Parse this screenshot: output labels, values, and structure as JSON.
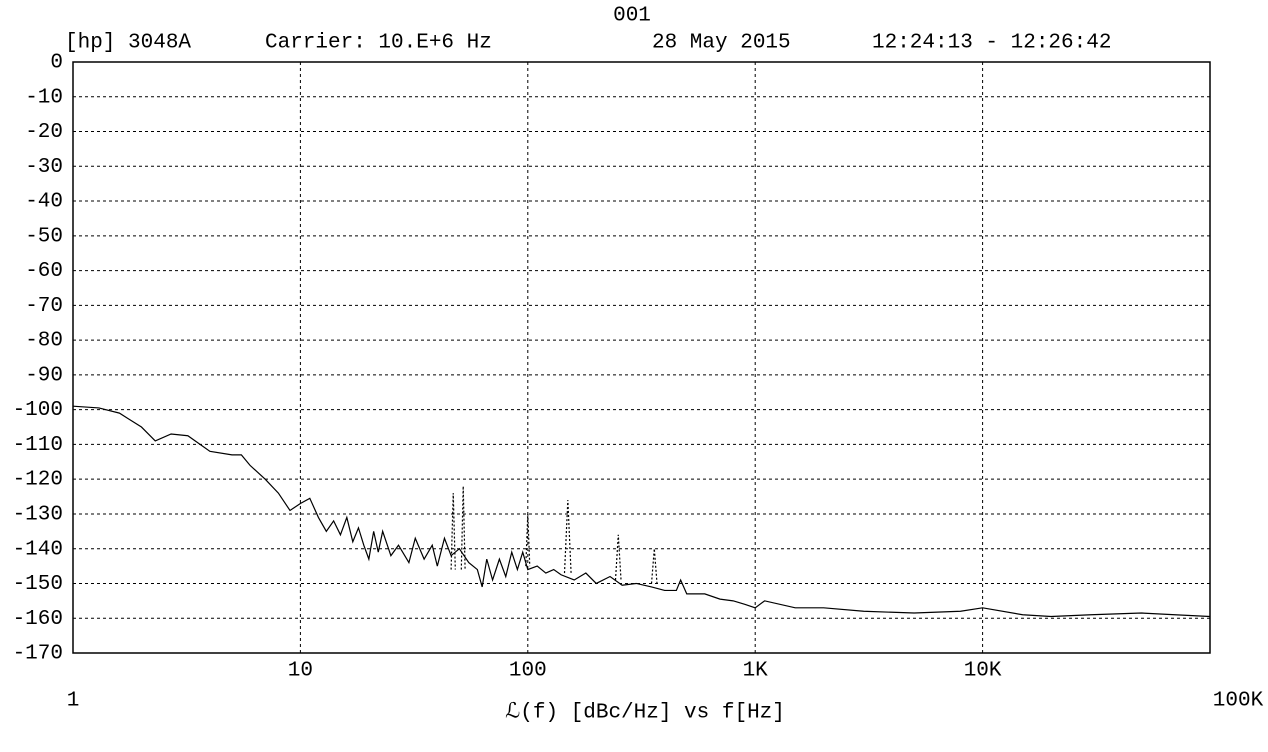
{
  "chart_data": {
    "type": "line",
    "title": "001",
    "instrument": "[hp] 3048A",
    "carrier": "Carrier: 10.E+6 Hz",
    "date": "28 May 2015",
    "time": "12:24:13 - 12:26:42",
    "x_label": "ℒ(f)  [dBc/Hz]  vs  f[Hz]",
    "log_x": true,
    "grid": true,
    "xlim": [
      1,
      100000
    ],
    "xticks": [
      1,
      10,
      100,
      {
        "value": 1000,
        "label": "1K"
      },
      {
        "value": 10000,
        "label": "10K"
      },
      {
        "value": 100000,
        "label": "100K"
      }
    ],
    "ylim": [
      -170,
      0
    ],
    "yticks": [
      0,
      -10,
      -20,
      -30,
      -40,
      -50,
      -60,
      -70,
      -80,
      -90,
      -100,
      -110,
      -120,
      -130,
      -140,
      -150,
      -160,
      -170
    ],
    "series": [
      {
        "color": "#000000",
        "style": "solid",
        "x": [
          1,
          1.3,
          1.6,
          2,
          2.3,
          2.7,
          3.2,
          4,
          5,
          5.5,
          6,
          7,
          8,
          9,
          10,
          11,
          12,
          13,
          14,
          15,
          16,
          17,
          18,
          19,
          20,
          21,
          22,
          23,
          25,
          27,
          30,
          32,
          35,
          38,
          40,
          43,
          46,
          50,
          55,
          60,
          63,
          66,
          70,
          75,
          80,
          85,
          90,
          95,
          100,
          110,
          120,
          130,
          140,
          160,
          180,
          200,
          230,
          260,
          300,
          350,
          400,
          450,
          470,
          500,
          600,
          700,
          800,
          900,
          1000,
          1100,
          1500,
          2000,
          3000,
          5000,
          8000,
          10000,
          15000,
          20000,
          30000,
          50000,
          70000,
          100000
        ],
        "values": [
          -99,
          -99.5,
          -101,
          -105,
          -109,
          -107,
          -107.5,
          -112,
          -113,
          -113,
          -116,
          -120,
          -124,
          -129,
          -127,
          -125.5,
          -131,
          -135,
          -132,
          -136,
          -131,
          -138,
          -134,
          -139,
          -143,
          -135,
          -141,
          -135,
          -142,
          -139,
          -144,
          -137,
          -143,
          -139,
          -145,
          -137,
          -142,
          -140,
          -144,
          -146,
          -151,
          -143,
          -149,
          -143,
          -148,
          -141,
          -146,
          -141,
          -146,
          -145,
          -147,
          -146,
          -147.5,
          -149,
          -147,
          -150,
          -148,
          -150.5,
          -150,
          -151,
          -152,
          -152,
          -149,
          -153,
          -153,
          -154.5,
          -155,
          -156,
          -157,
          -155,
          -157,
          -157,
          -158,
          -158.5,
          -158,
          -157,
          -159,
          -159.5,
          -159,
          -158.5,
          -159,
          -159.5
        ]
      },
      {
        "color": "#000000",
        "style": "dashed",
        "x": [
          46,
          47,
          48,
          48,
          51,
          52,
          53,
          53,
          98,
          100,
          102,
          102,
          145,
          150,
          155,
          155,
          243,
          250,
          257,
          257,
          350,
          360,
          370
        ],
        "values": [
          -146,
          -124,
          -146,
          null,
          -146,
          -122,
          -146,
          null,
          -145,
          -130,
          -145,
          null,
          -147,
          -126,
          -147,
          null,
          -149,
          -136,
          -149,
          null,
          -150,
          -140,
          -150
        ]
      }
    ]
  }
}
